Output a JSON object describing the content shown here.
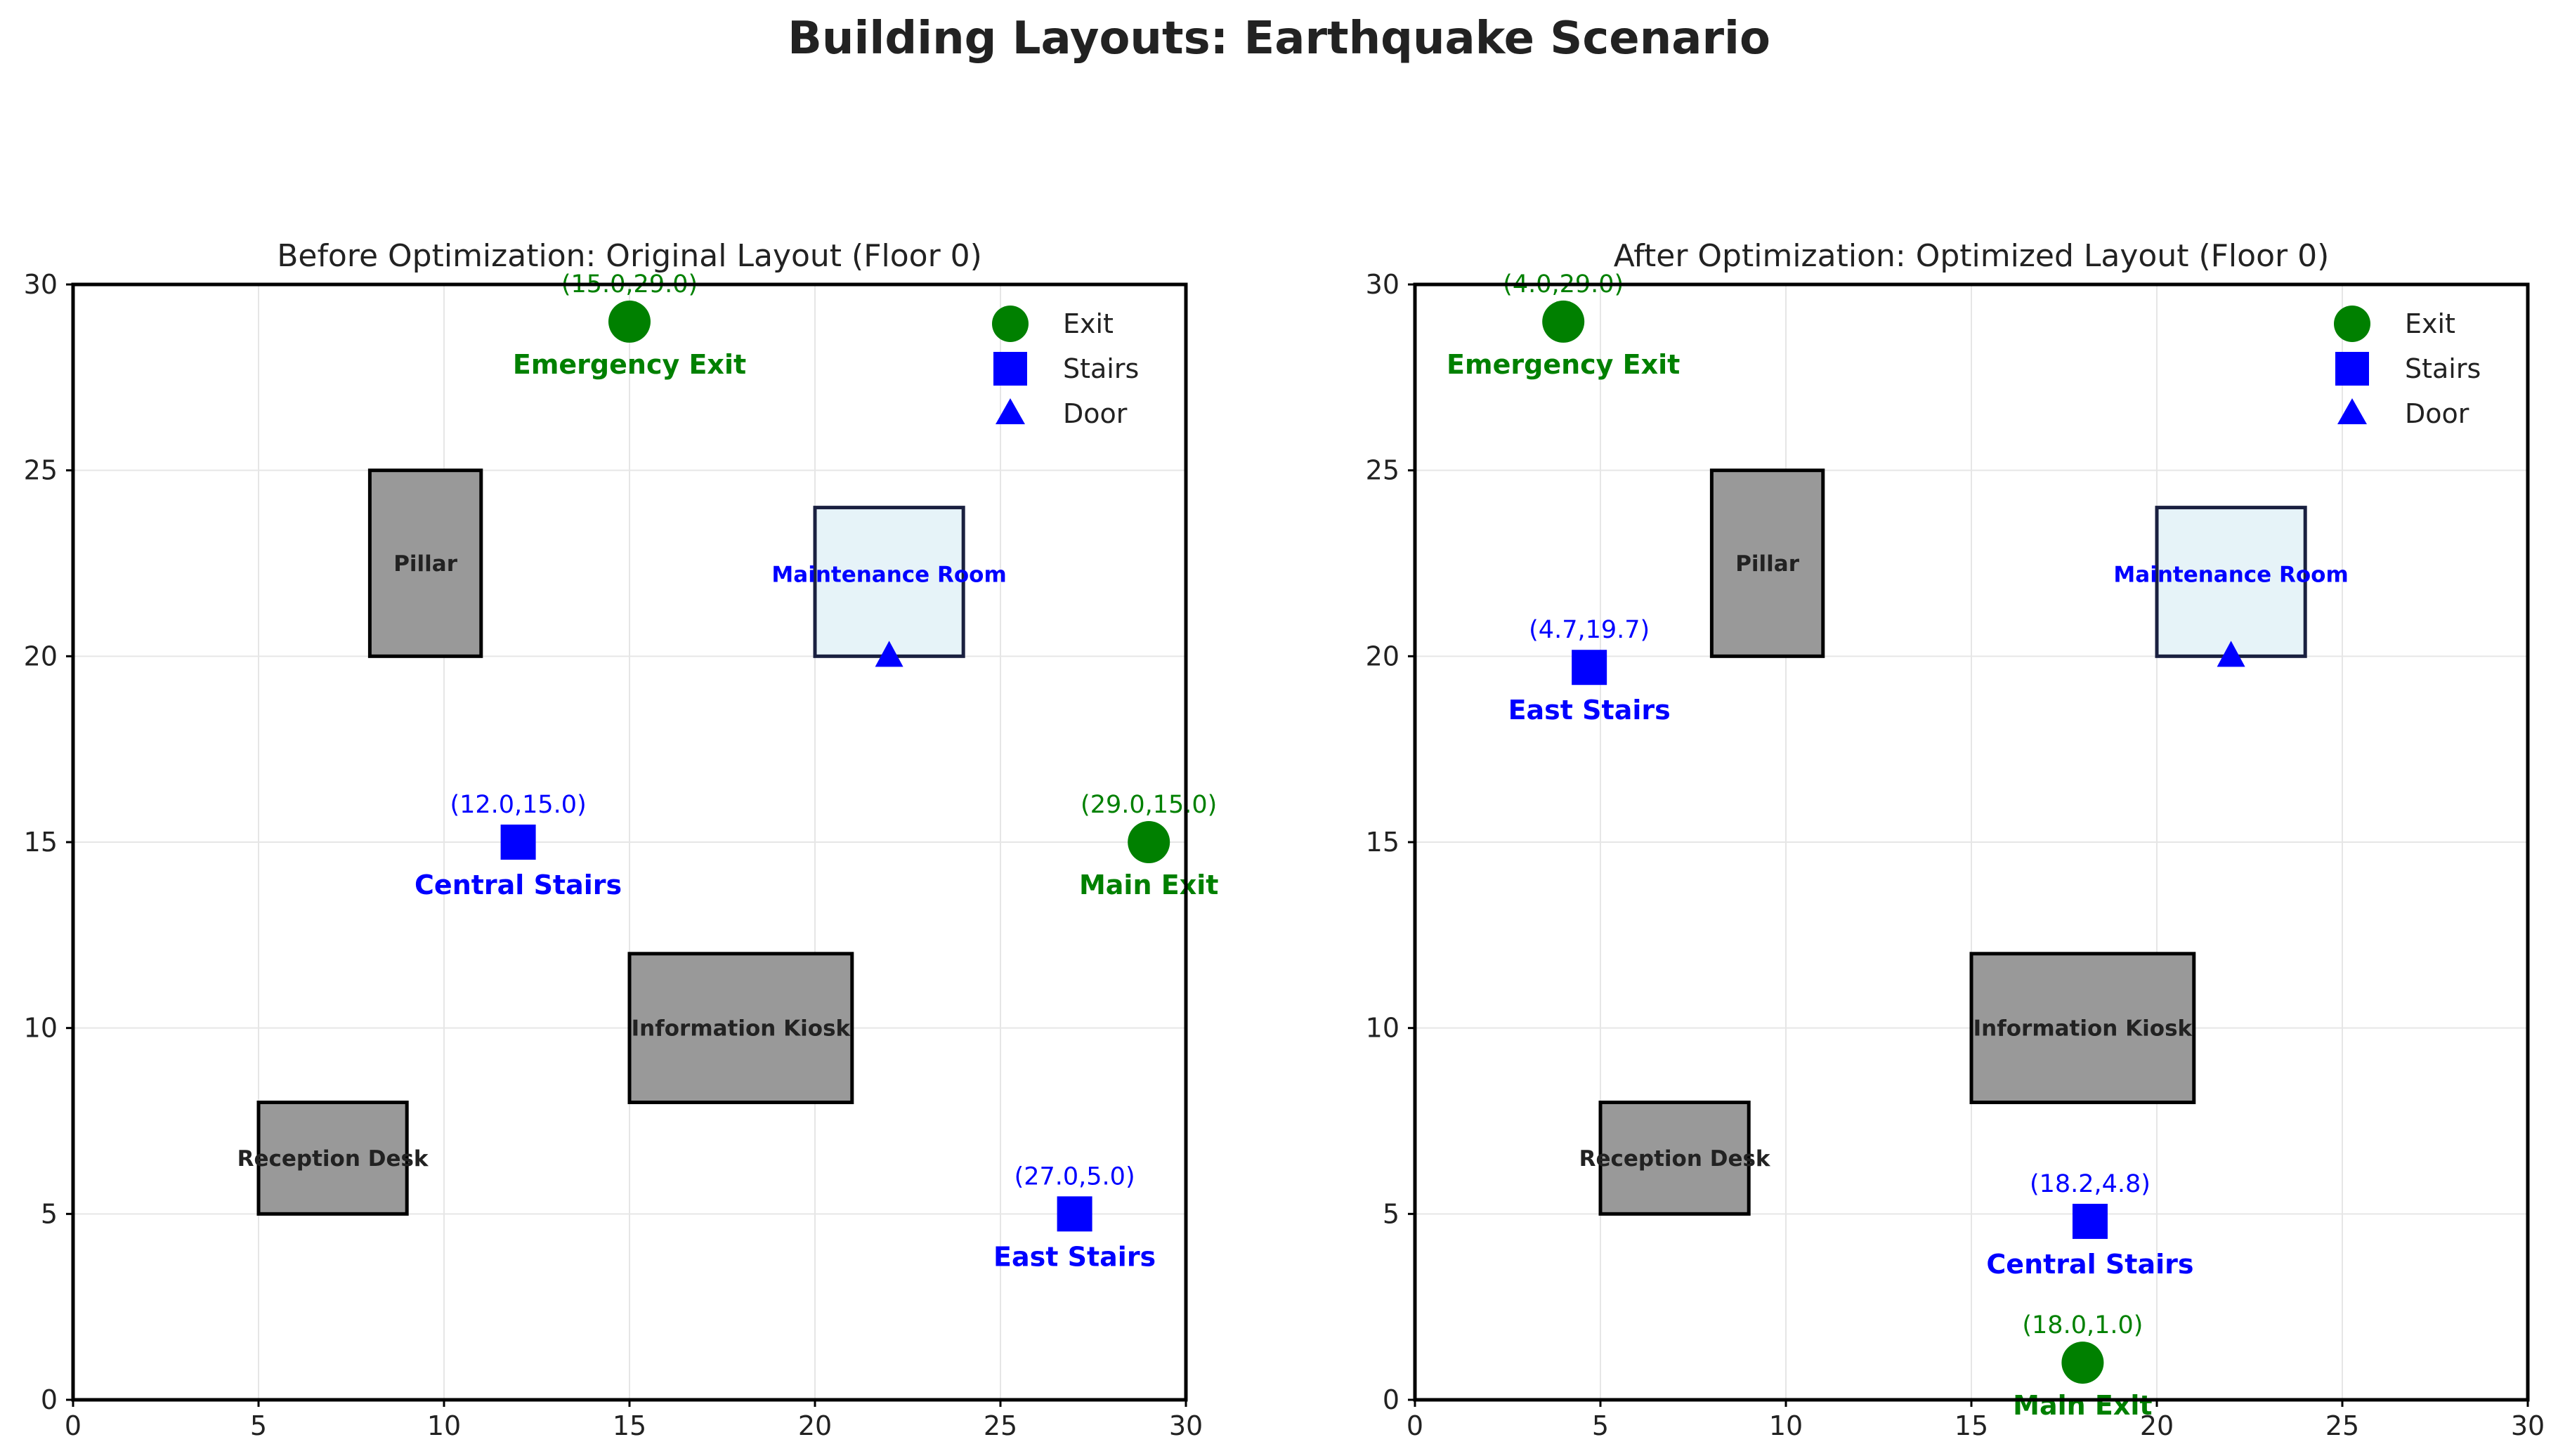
{
  "title": "Building Layouts: Earthquake Scenario",
  "colors": {
    "exit": "#008000",
    "stairs": "#0000ff",
    "door": "#0000ff",
    "obstacle_fill": "#999999",
    "room_fill": "#e6f3f8",
    "room_stroke": "#1a2040",
    "grid": "#e6e6e6",
    "text": "#222222"
  },
  "chart_data": [
    {
      "type": "scatter",
      "title": "Before Optimization: Original Layout (Floor 0)",
      "xlim": [
        0,
        30
      ],
      "ylim": [
        0,
        30
      ],
      "xticks": [
        "0",
        "5",
        "10",
        "15",
        "20",
        "25",
        "30"
      ],
      "yticks": [
        "0",
        "5",
        "10",
        "15",
        "20",
        "25",
        "30"
      ],
      "grid": true,
      "legend_position": "top-right",
      "legend": [
        {
          "label": "Exit",
          "marker": "circle"
        },
        {
          "label": "Stairs",
          "marker": "square"
        },
        {
          "label": "Door",
          "marker": "triangle"
        }
      ],
      "obstacles": [
        {
          "label": "Pillar",
          "x": 8,
          "y": 20,
          "w": 3,
          "h": 5,
          "kind": "obstacle"
        },
        {
          "label": "Information Kiosk",
          "x": 15,
          "y": 8,
          "w": 6,
          "h": 4,
          "kind": "obstacle"
        },
        {
          "label": "Reception Desk",
          "x": 5,
          "y": 5,
          "w": 4,
          "h": 3,
          "kind": "obstacle"
        },
        {
          "label": "Maintenance Room",
          "x": 20,
          "y": 20,
          "w": 4,
          "h": 4,
          "kind": "room"
        }
      ],
      "exits": [
        {
          "name": "Emergency Exit",
          "coord": "(15.0,29.0)",
          "x": 15.0,
          "y": 29.0
        },
        {
          "name": "Main Exit",
          "coord": "(29.0,15.0)",
          "x": 29.0,
          "y": 15.0
        }
      ],
      "stairs": [
        {
          "name": "Central Stairs",
          "coord": "(12.0,15.0)",
          "x": 12.0,
          "y": 15.0
        },
        {
          "name": "East Stairs",
          "coord": "(27.0,5.0)",
          "x": 27.0,
          "y": 5.0
        }
      ],
      "doors": [
        {
          "x": 22.0,
          "y": 20.0
        }
      ]
    },
    {
      "type": "scatter",
      "title": "After Optimization: Optimized Layout (Floor 0)",
      "xlim": [
        0,
        30
      ],
      "ylim": [
        0,
        30
      ],
      "xticks": [
        "0",
        "5",
        "10",
        "15",
        "20",
        "25",
        "30"
      ],
      "yticks": [
        "0",
        "5",
        "10",
        "15",
        "20",
        "25",
        "30"
      ],
      "grid": true,
      "legend_position": "top-right",
      "legend": [
        {
          "label": "Exit",
          "marker": "circle"
        },
        {
          "label": "Stairs",
          "marker": "square"
        },
        {
          "label": "Door",
          "marker": "triangle"
        }
      ],
      "obstacles": [
        {
          "label": "Pillar",
          "x": 8,
          "y": 20,
          "w": 3,
          "h": 5,
          "kind": "obstacle"
        },
        {
          "label": "Information Kiosk",
          "x": 15,
          "y": 8,
          "w": 6,
          "h": 4,
          "kind": "obstacle"
        },
        {
          "label": "Reception Desk",
          "x": 5,
          "y": 5,
          "w": 4,
          "h": 3,
          "kind": "obstacle"
        },
        {
          "label": "Maintenance Room",
          "x": 20,
          "y": 20,
          "w": 4,
          "h": 4,
          "kind": "room"
        }
      ],
      "exits": [
        {
          "name": "Emergency Exit",
          "coord": "(4.0,29.0)",
          "x": 4.0,
          "y": 29.0
        },
        {
          "name": "Main Exit",
          "coord": "(18.0,1.0)",
          "x": 18.0,
          "y": 1.0
        }
      ],
      "stairs": [
        {
          "name": "East Stairs",
          "coord": "(4.7,19.7)",
          "x": 4.7,
          "y": 19.7
        },
        {
          "name": "Central Stairs",
          "coord": "(18.2,4.8)",
          "x": 18.2,
          "y": 4.8
        }
      ],
      "doors": [
        {
          "x": 22.0,
          "y": 20.0
        }
      ]
    }
  ]
}
